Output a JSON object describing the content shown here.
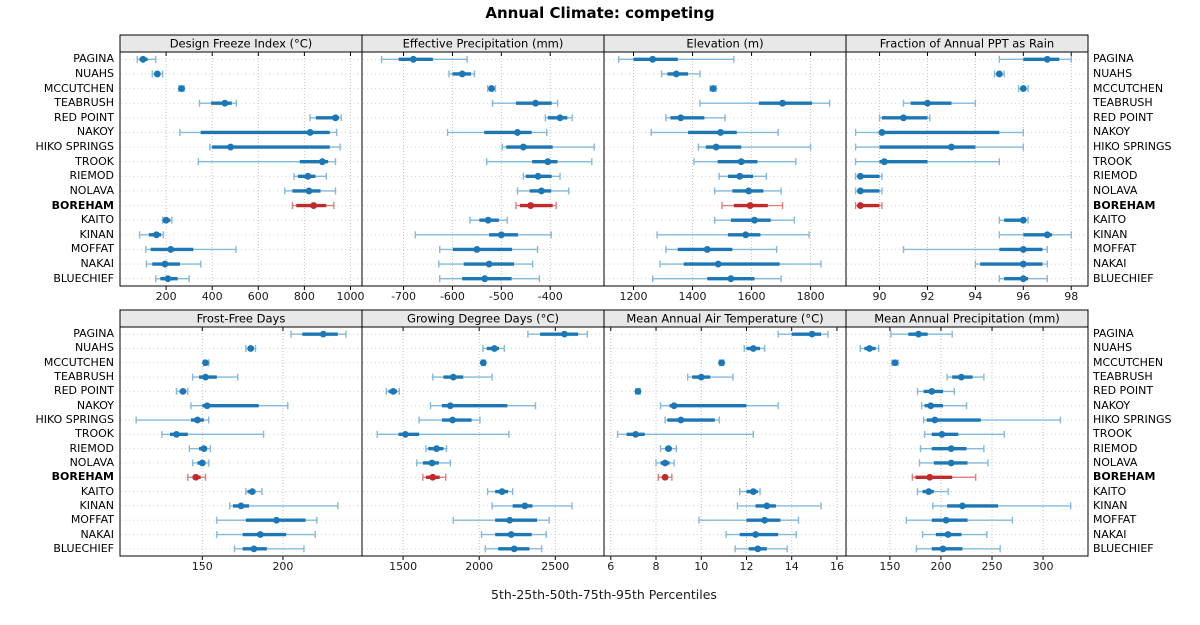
{
  "title": "Annual Climate: competing",
  "xlabel": "5th-25th-50th-75th-95th Percentiles",
  "highlight_site": "BOREHAM",
  "colors": {
    "series_blue": "#1d77b4",
    "series_blue_light": "#85b9da",
    "highlight_red": "#c02a2a",
    "highlight_red_light": "#d98080",
    "panel_header_bg": "#e8e8e8",
    "panel_border": "#000000",
    "gridline": "#c4c4c4",
    "row_guide": "#d2d2d2",
    "tick_text": "#1a1a1a"
  },
  "chart_data": {
    "type": "dotplot-percentiles",
    "percentile_labels": [
      "5th",
      "25th",
      "50th",
      "75th",
      "95th"
    ],
    "legend_note": "dot = median, thick bar = 25th-75th, thin whisker = 5th-95th",
    "rows": [
      "PAGINA",
      "NUAHS",
      "MCCUTCHEN",
      "TEABRUSH",
      "RED POINT",
      "NAKOY",
      "HIKO SPRINGS",
      "TROOK",
      "RIEMOD",
      "NOLAVA",
      "BOREHAM",
      "KAITO",
      "KINAN",
      "MOFFAT",
      "NAKAI",
      "BLUECHIEF"
    ],
    "panels": [
      {
        "title": "Design Freeze Index (°C)",
        "grid_row": 1,
        "grid_col": 1,
        "xlim": [
          0,
          1050
        ],
        "ticks": [
          200,
          400,
          600,
          800,
          1000
        ],
        "values": {
          "PAGINA": [
            75,
            85,
            100,
            120,
            155
          ],
          "NUAHS": [
            140,
            150,
            162,
            175,
            185
          ],
          "MCCUTCHEN": [
            255,
            262,
            267,
            272,
            278
          ],
          "TEABRUSH": [
            345,
            395,
            455,
            485,
            505
          ],
          "RED POINT": [
            825,
            850,
            935,
            950,
            960
          ],
          "NAKOY": [
            260,
            350,
            825,
            910,
            940
          ],
          "HIKO SPRINGS": [
            390,
            400,
            480,
            910,
            955
          ],
          "TROOK": [
            340,
            780,
            878,
            903,
            935
          ],
          "RIEMOD": [
            755,
            772,
            815,
            848,
            895
          ],
          "NOLAVA": [
            715,
            748,
            820,
            870,
            935
          ],
          "BOREHAM": [
            748,
            765,
            840,
            895,
            928
          ],
          "KAITO": [
            185,
            190,
            200,
            218,
            225
          ],
          "KINAN": [
            85,
            125,
            158,
            178,
            188
          ],
          "MOFFAT": [
            112,
            133,
            220,
            318,
            503
          ],
          "NAKAI": [
            115,
            140,
            195,
            260,
            350
          ],
          "BLUECHIEF": [
            155,
            175,
            208,
            250,
            300
          ]
        }
      },
      {
        "title": "Effective Precipitation (mm)",
        "grid_row": 1,
        "grid_col": 2,
        "xlim": [
          -785,
          -290
        ],
        "ticks": [
          -700,
          -600,
          -500,
          -400
        ],
        "values": {
          "PAGINA": [
            -745,
            -710,
            -680,
            -640,
            -570
          ],
          "NUAHS": [
            -607,
            -600,
            -580,
            -562,
            -555
          ],
          "MCCUTCHEN": [
            -528,
            -523,
            -520,
            -517,
            -512
          ],
          "TEABRUSH": [
            -518,
            -470,
            -430,
            -397,
            -385
          ],
          "RED POINT": [
            -410,
            -405,
            -380,
            -365,
            -355
          ],
          "NAKOY": [
            -610,
            -535,
            -467,
            -438,
            -407
          ],
          "HIKO SPRINGS": [
            -498,
            -490,
            -455,
            -395,
            -310
          ],
          "TROOK": [
            -530,
            -437,
            -405,
            -385,
            -315
          ],
          "RIEMOD": [
            -455,
            -450,
            -425,
            -397,
            -380
          ],
          "NOLAVA": [
            -467,
            -442,
            -418,
            -398,
            -362
          ],
          "BOREHAM": [
            -470,
            -462,
            -440,
            -395,
            -388
          ],
          "KAITO": [
            -564,
            -545,
            -527,
            -505,
            -488
          ],
          "KINAN": [
            -676,
            -525,
            -500,
            -466,
            -398
          ],
          "MOFFAT": [
            -626,
            -599,
            -550,
            -478,
            -426
          ],
          "NAKAI": [
            -628,
            -577,
            -525,
            -474,
            -436
          ],
          "BLUECHIEF": [
            -626,
            -580,
            -534,
            -479,
            -422
          ]
        }
      },
      {
        "title": "Elevation (m)",
        "grid_row": 1,
        "grid_col": 3,
        "xlim": [
          1100,
          1920
        ],
        "ticks": [
          1200,
          1400,
          1600,
          1800
        ],
        "values": {
          "PAGINA": [
            1150,
            1200,
            1265,
            1350,
            1540
          ],
          "NUAHS": [
            1295,
            1315,
            1345,
            1385,
            1425
          ],
          "MCCUTCHEN": [
            1460,
            1466,
            1470,
            1474,
            1480
          ],
          "TEABRUSH": [
            1425,
            1625,
            1705,
            1805,
            1865
          ],
          "RED POINT": [
            1310,
            1325,
            1360,
            1440,
            1510
          ],
          "NAKOY": [
            1260,
            1385,
            1495,
            1550,
            1690
          ],
          "HIKO SPRINGS": [
            1420,
            1445,
            1480,
            1565,
            1800
          ],
          "TROOK": [
            1405,
            1485,
            1565,
            1620,
            1750
          ],
          "RIEMOD": [
            1490,
            1520,
            1560,
            1605,
            1650
          ],
          "NOLAVA": [
            1475,
            1535,
            1590,
            1640,
            1700
          ],
          "BOREHAM": [
            1500,
            1540,
            1595,
            1655,
            1705
          ],
          "KAITO": [
            1475,
            1530,
            1610,
            1665,
            1745
          ],
          "KINAN": [
            1280,
            1520,
            1580,
            1630,
            1795
          ],
          "MOFFAT": [
            1310,
            1350,
            1450,
            1535,
            1685
          ],
          "NAKAI": [
            1290,
            1370,
            1487,
            1695,
            1835
          ],
          "BLUECHIEF": [
            1265,
            1450,
            1530,
            1610,
            1700
          ]
        }
      },
      {
        "title": "Fraction of Annual PPT as Rain",
        "grid_row": 1,
        "grid_col": 4,
        "xlim": [
          88.6,
          98.7
        ],
        "ticks": [
          90,
          92,
          94,
          96,
          98
        ],
        "values": {
          "PAGINA": [
            95,
            96,
            97,
            97.5,
            98
          ],
          "NUAHS": [
            94.8,
            94.9,
            95,
            95.1,
            95.2
          ],
          "MCCUTCHEN": [
            95.8,
            95.9,
            96,
            96.1,
            96.2
          ],
          "TEABRUSH": [
            91,
            91.3,
            92,
            93,
            94
          ],
          "RED POINT": [
            90,
            90.1,
            91,
            92,
            92.1
          ],
          "NAKOY": [
            89,
            90,
            90.1,
            95,
            96
          ],
          "HIKO SPRINGS": [
            89,
            90,
            93,
            94,
            96
          ],
          "TROOK": [
            89,
            90,
            90.2,
            92,
            95
          ],
          "RIEMOD": [
            89,
            89.1,
            89.2,
            90,
            90.1
          ],
          "NOLAVA": [
            89,
            89.1,
            89.2,
            90,
            90.1
          ],
          "BOREHAM": [
            89,
            89.1,
            89.2,
            90,
            90.1
          ],
          "KAITO": [
            95,
            95.2,
            96,
            96.1,
            96.2
          ],
          "KINAN": [
            95,
            96,
            97,
            97.2,
            98
          ],
          "MOFFAT": [
            91,
            95,
            96,
            96.8,
            97
          ],
          "NAKAI": [
            94,
            94.2,
            96,
            96.8,
            97
          ],
          "BLUECHIEF": [
            95,
            95.2,
            96,
            96.2,
            97
          ]
        }
      },
      {
        "title": "Frost-Free Days",
        "grid_row": 2,
        "grid_col": 1,
        "xlim": [
          99,
          249
        ],
        "ticks": [
          150,
          200
        ],
        "values": {
          "PAGINA": [
            205,
            212,
            225,
            234,
            239
          ],
          "NUAHS": [
            177,
            179,
            180,
            182,
            183
          ],
          "MCCUTCHEN": [
            151,
            152,
            152,
            153,
            154
          ],
          "TEABRUSH": [
            144,
            148,
            152,
            159,
            172
          ],
          "RED POINT": [
            134,
            136,
            138,
            140,
            141
          ],
          "NAKOY": [
            143,
            150,
            153,
            185,
            203
          ],
          "HIKO SPRINGS": [
            109,
            143,
            147,
            151,
            154
          ],
          "TROOK": [
            125,
            130,
            134,
            141,
            188
          ],
          "RIEMOD": [
            142,
            148,
            151,
            153,
            155
          ],
          "NOLAVA": [
            144,
            147,
            150,
            152,
            154
          ],
          "BOREHAM": [
            141,
            144,
            146,
            149,
            152
          ],
          "KAITO": [
            177,
            178,
            181,
            183,
            187
          ],
          "KINAN": [
            167,
            169,
            174,
            179,
            234
          ],
          "MOFFAT": [
            159,
            177,
            196,
            214,
            221
          ],
          "NAKAI": [
            159,
            175,
            186,
            202,
            220
          ],
          "BLUECHIEF": [
            170,
            175,
            182,
            190,
            213
          ]
        }
      },
      {
        "title": "Growing Degree Days (°C)",
        "grid_row": 2,
        "grid_col": 2,
        "xlim": [
          1230,
          2820
        ],
        "ticks": [
          1500,
          2000,
          2500
        ],
        "values": {
          "PAGINA": [
            2320,
            2400,
            2560,
            2650,
            2710
          ],
          "NUAHS": [
            2025,
            2050,
            2100,
            2130,
            2165
          ],
          "MCCUTCHEN": [
            2015,
            2022,
            2027,
            2032,
            2040
          ],
          "TEABRUSH": [
            1695,
            1765,
            1830,
            1895,
            2085
          ],
          "RED POINT": [
            1390,
            1405,
            1435,
            1460,
            1475
          ],
          "NAKOY": [
            1680,
            1755,
            1810,
            2185,
            2370
          ],
          "HIKO SPRINGS": [
            1605,
            1755,
            1825,
            1950,
            2005
          ],
          "TROOK": [
            1330,
            1470,
            1515,
            1605,
            2195
          ],
          "RIEMOD": [
            1650,
            1665,
            1720,
            1765,
            1785
          ],
          "NOLAVA": [
            1590,
            1630,
            1690,
            1735,
            1810
          ],
          "BOREHAM": [
            1630,
            1650,
            1695,
            1740,
            1780
          ],
          "KAITO": [
            2055,
            2105,
            2150,
            2190,
            2220
          ],
          "KINAN": [
            2085,
            2220,
            2300,
            2350,
            2610
          ],
          "MOFFAT": [
            1830,
            2105,
            2200,
            2380,
            2460
          ],
          "NAKAI": [
            2015,
            2105,
            2210,
            2345,
            2440
          ],
          "BLUECHIEF": [
            2040,
            2125,
            2230,
            2330,
            2410
          ]
        }
      },
      {
        "title": "Mean Annual Air Temperature (°C)",
        "grid_row": 2,
        "grid_col": 3,
        "xlim": [
          5.7,
          16.4
        ],
        "ticks": [
          6,
          8,
          10,
          12,
          14,
          16
        ],
        "values": {
          "PAGINA": [
            13.4,
            14.0,
            14.9,
            15.3,
            15.6
          ],
          "NUAHS": [
            11.9,
            12.0,
            12.3,
            12.6,
            12.8
          ],
          "MCCUTCHEN": [
            10.8,
            10.85,
            10.9,
            10.95,
            11.0
          ],
          "TEABRUSH": [
            9.4,
            9.6,
            10.0,
            10.4,
            11.4
          ],
          "RED POINT": [
            7.1,
            7.15,
            7.2,
            7.25,
            7.3
          ],
          "NAKOY": [
            8.2,
            8.6,
            8.8,
            12.0,
            13.4
          ],
          "HIKO SPRINGS": [
            8.4,
            8.5,
            9.1,
            10.6,
            10.8
          ],
          "TROOK": [
            6.3,
            6.7,
            7.1,
            7.5,
            12.3
          ],
          "RIEMOD": [
            8.2,
            8.4,
            8.55,
            8.7,
            8.9
          ],
          "NOLAVA": [
            8.0,
            8.2,
            8.4,
            8.6,
            8.8
          ],
          "BOREHAM": [
            8.1,
            8.3,
            8.4,
            8.5,
            8.7
          ],
          "KAITO": [
            11.7,
            12.0,
            12.3,
            12.5,
            12.6
          ],
          "KINAN": [
            11.6,
            12.4,
            12.9,
            13.3,
            15.3
          ],
          "MOFFAT": [
            9.9,
            12.0,
            12.8,
            13.5,
            14.3
          ],
          "NAKAI": [
            11.1,
            11.7,
            12.4,
            13.4,
            14.2
          ],
          "BLUECHIEF": [
            11.5,
            12.1,
            12.5,
            12.9,
            13.8
          ]
        }
      },
      {
        "title": "Mean Annual Precipitation (mm)",
        "grid_row": 2,
        "grid_col": 4,
        "xlim": [
          107,
          344
        ],
        "ticks": [
          150,
          200,
          250,
          300
        ],
        "values": {
          "PAGINA": [
            151,
            168,
            178,
            187,
            211
          ],
          "NUAHS": [
            121,
            125,
            130,
            136,
            139
          ],
          "MCCUTCHEN": [
            152,
            154,
            155,
            156,
            158
          ],
          "TEABRUSH": [
            206,
            211,
            220,
            231,
            242
          ],
          "RED POINT": [
            177,
            183,
            191,
            202,
            213
          ],
          "NAKOY": [
            181,
            184,
            190,
            202,
            225
          ],
          "HIKO SPRINGS": [
            183,
            186,
            194,
            239,
            317
          ],
          "TROOK": [
            184,
            191,
            201,
            217,
            262
          ],
          "RIEMOD": [
            180,
            191,
            210,
            225,
            242
          ],
          "NOLAVA": [
            179,
            193,
            210,
            226,
            246
          ],
          "BOREHAM": [
            172,
            175,
            189,
            211,
            234
          ],
          "KAITO": [
            177,
            182,
            188,
            193,
            207
          ],
          "KINAN": [
            192,
            206,
            221,
            256,
            327
          ],
          "MOFFAT": [
            166,
            191,
            205,
            226,
            270
          ],
          "NAKAI": [
            182,
            195,
            207,
            220,
            245
          ],
          "BLUECHIEF": [
            176,
            191,
            202,
            221,
            258
          ]
        }
      }
    ]
  }
}
